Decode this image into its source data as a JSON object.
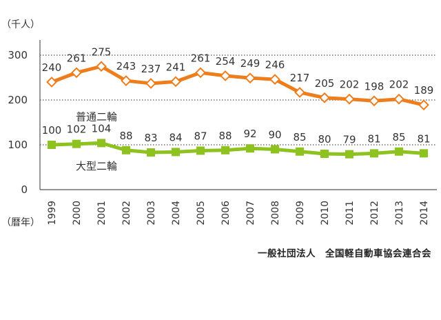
{
  "chart_data": {
    "type": "line",
    "x": [
      "1999",
      "2000",
      "2001",
      "2002",
      "2003",
      "2004",
      "2005",
      "2006",
      "2007",
      "2008",
      "2009",
      "2010",
      "2011",
      "2012",
      "2013",
      "2014"
    ],
    "series": [
      {
        "name": "普通二輪",
        "values": [
          240,
          261,
          275,
          243,
          237,
          241,
          261,
          254,
          249,
          246,
          217,
          205,
          202,
          198,
          202,
          189
        ],
        "color": "#EE7D1C",
        "marker": "diamond-open"
      },
      {
        "name": "大型二輪",
        "values": [
          100,
          102,
          104,
          88,
          83,
          84,
          87,
          88,
          92,
          90,
          85,
          80,
          79,
          81,
          85,
          81
        ],
        "color": "#8DC21F",
        "marker": "square"
      }
    ],
    "ylim": [
      0,
      350
    ],
    "yticks": [
      0,
      100,
      200,
      300
    ],
    "y_unit_label": "（千人）",
    "x_unit_label": "（暦年）",
    "grid": "horizontal-dotted"
  },
  "source": "一般社団法人　全国軽自動車協会連合会"
}
